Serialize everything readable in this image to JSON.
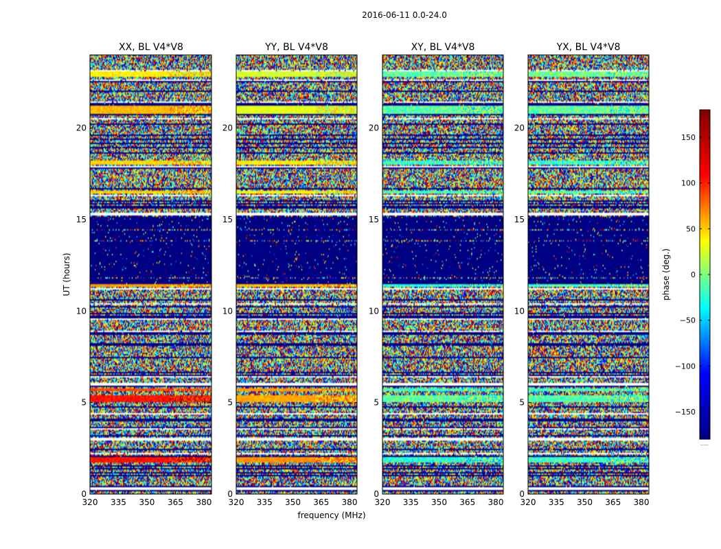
{
  "figure": {
    "suptitle": "2016-06-11 0.0-24.0"
  },
  "chart_data": {
    "type": "heatmap",
    "panels": [
      {
        "title": "XX, BL V4*V8",
        "polarization": "XX"
      },
      {
        "title": "YY, BL V4*V8",
        "polarization": "YY"
      },
      {
        "title": "XY, BL V4*V8",
        "polarization": "XY"
      },
      {
        "title": "YX, BL V4*V8",
        "polarization": "YX"
      }
    ],
    "xlabel": "frequency (MHz)",
    "ylabel": "UT (hours)",
    "xlim": [
      320,
      384
    ],
    "ylim": [
      0,
      24
    ],
    "xticks": [
      320,
      335,
      350,
      365,
      380
    ],
    "xtick_labels": [
      "320",
      "335",
      "350",
      "365",
      "380"
    ],
    "yticks": [
      0,
      5,
      10,
      15,
      20
    ],
    "ytick_labels": [
      "0",
      "5",
      "10",
      "15",
      "20"
    ],
    "colorbar": {
      "label": "phase (deg.)",
      "vmin": -180,
      "vmax": 180,
      "ticks": [
        150,
        100,
        50,
        0,
        -50,
        -100,
        -150
      ],
      "tick_labels": [
        "150",
        "100",
        "50",
        "0",
        "−50",
        "−100",
        "−150"
      ],
      "colormap": "jet",
      "stops": [
        "#00007f",
        "#0000ff",
        "#00ffff",
        "#ffff00",
        "#ff0000",
        "#7f0000"
      ],
      "footnote": "......"
    },
    "structure": {
      "noisy_band": [
        11.3,
        15.2
      ],
      "white_gap_hours": [
        17.9,
        15.3,
        11.2,
        6.0,
        4.4,
        3.0,
        0.3
      ],
      "coherent_bands": [
        {
          "ut": [
            22.8,
            23.1
          ],
          "phase": {
            "XX": 50,
            "YY": 30,
            "XY": -10,
            "YX": -5
          }
        },
        {
          "ut": [
            20.8,
            21.2
          ],
          "phase": {
            "XX": 70,
            "YY": 35,
            "XY": -15,
            "YX": -10
          }
        },
        {
          "ut": [
            18.0,
            18.2
          ],
          "phase": {
            "XX": 60,
            "YY": 50,
            "XY": -25,
            "YX": -25
          }
        },
        {
          "ut": [
            16.4,
            16.6
          ],
          "phase": {
            "XX": 60,
            "YY": 45,
            "XY": -20,
            "YX": -15
          }
        },
        {
          "ut": [
            11.3,
            11.5
          ],
          "phase": {
            "XX": 80,
            "YY": 70,
            "XY": -30,
            "YX": -20
          }
        },
        {
          "ut": [
            5.6,
            5.8
          ],
          "phase": {
            "XX": 110,
            "YY": 80,
            "XY": -20,
            "YX": -20
          }
        },
        {
          "ut": [
            5.0,
            5.4
          ],
          "phase": {
            "XX": 130,
            "YY": 75,
            "XY": -10,
            "YX": -15
          }
        },
        {
          "ut": [
            1.7,
            2.0
          ],
          "phase": {
            "XX": 130,
            "YY": 85,
            "XY": -30,
            "YX": -25
          }
        },
        {
          "ut": [
            0.2,
            0.3
          ],
          "phase": {
            "XX": 60,
            "YY": 50,
            "XY": -20,
            "YX": -20
          }
        }
      ]
    }
  }
}
